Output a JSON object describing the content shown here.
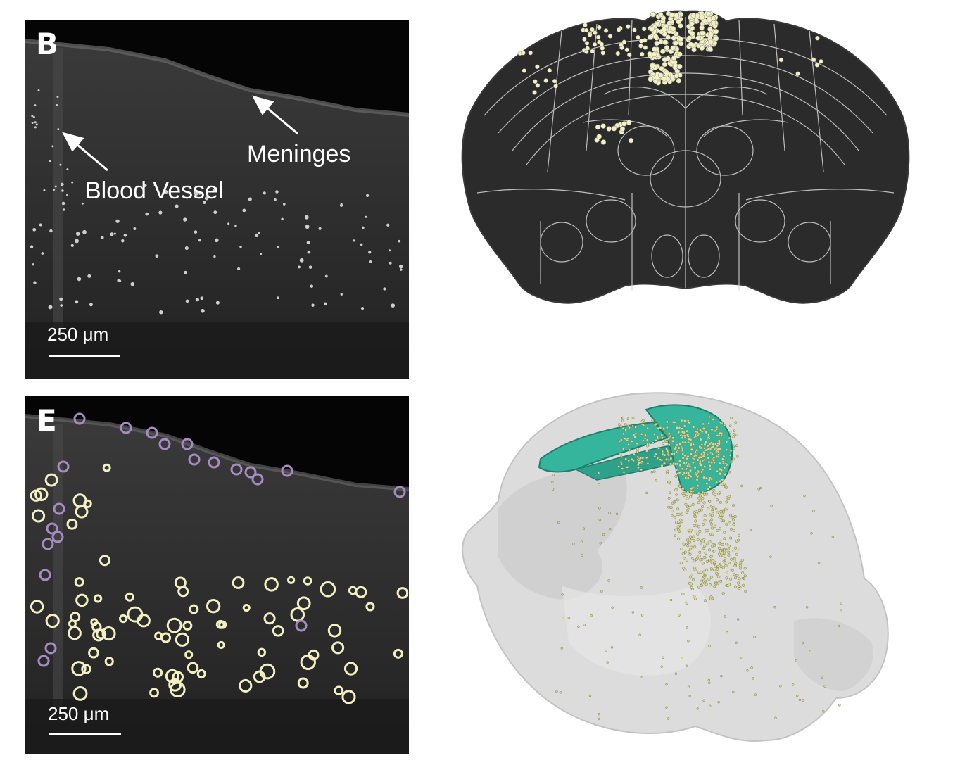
{
  "panel_b": {
    "letter": "B",
    "label_meninges": "Meninges",
    "label_blood_vessel": "Blood Vessel",
    "scale_label": "250 μm"
  },
  "panel_e": {
    "letter": "E",
    "scale_label": "250 μm"
  },
  "colors": {
    "cell_yellow": "#f3f1c3",
    "cell_purple": "#a98ac4",
    "region_teal": "#35b59c",
    "tissue_dark": "#262626",
    "atlas_line": "#d8d8d8"
  }
}
